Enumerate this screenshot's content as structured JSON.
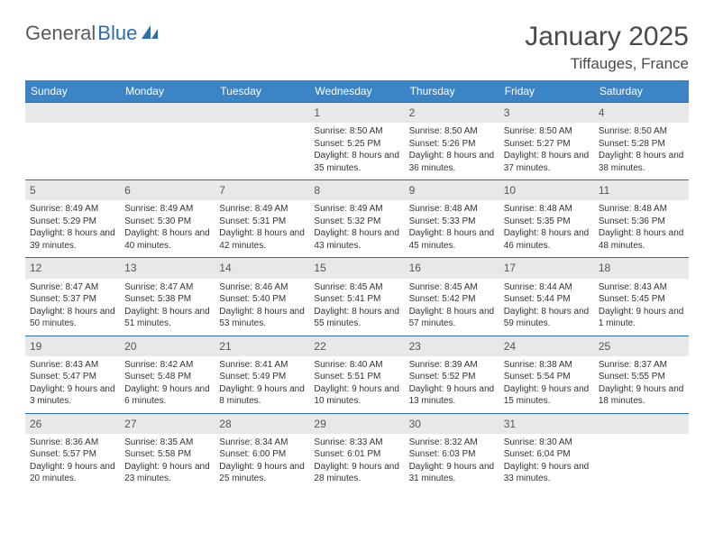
{
  "logo": {
    "text1": "General",
    "text2": "Blue"
  },
  "title": "January 2025",
  "location": "Tiffauges, France",
  "colors": {
    "header_bg": "#3b85c6",
    "header_text": "#ffffff",
    "daynum_bg": "#e8e8e8",
    "border": "#2a6db4",
    "text": "#333333",
    "logo_gray": "#5a5a5a",
    "logo_blue": "#2a6db4"
  },
  "dow": [
    "Sunday",
    "Monday",
    "Tuesday",
    "Wednesday",
    "Thursday",
    "Friday",
    "Saturday"
  ],
  "weeks": [
    [
      null,
      null,
      null,
      {
        "n": "1",
        "sr": "8:50 AM",
        "ss": "5:25 PM",
        "dl": "8 hours and 35 minutes."
      },
      {
        "n": "2",
        "sr": "8:50 AM",
        "ss": "5:26 PM",
        "dl": "8 hours and 36 minutes."
      },
      {
        "n": "3",
        "sr": "8:50 AM",
        "ss": "5:27 PM",
        "dl": "8 hours and 37 minutes."
      },
      {
        "n": "4",
        "sr": "8:50 AM",
        "ss": "5:28 PM",
        "dl": "8 hours and 38 minutes."
      }
    ],
    [
      {
        "n": "5",
        "sr": "8:49 AM",
        "ss": "5:29 PM",
        "dl": "8 hours and 39 minutes."
      },
      {
        "n": "6",
        "sr": "8:49 AM",
        "ss": "5:30 PM",
        "dl": "8 hours and 40 minutes."
      },
      {
        "n": "7",
        "sr": "8:49 AM",
        "ss": "5:31 PM",
        "dl": "8 hours and 42 minutes."
      },
      {
        "n": "8",
        "sr": "8:49 AM",
        "ss": "5:32 PM",
        "dl": "8 hours and 43 minutes."
      },
      {
        "n": "9",
        "sr": "8:48 AM",
        "ss": "5:33 PM",
        "dl": "8 hours and 45 minutes."
      },
      {
        "n": "10",
        "sr": "8:48 AM",
        "ss": "5:35 PM",
        "dl": "8 hours and 46 minutes."
      },
      {
        "n": "11",
        "sr": "8:48 AM",
        "ss": "5:36 PM",
        "dl": "8 hours and 48 minutes."
      }
    ],
    [
      {
        "n": "12",
        "sr": "8:47 AM",
        "ss": "5:37 PM",
        "dl": "8 hours and 50 minutes."
      },
      {
        "n": "13",
        "sr": "8:47 AM",
        "ss": "5:38 PM",
        "dl": "8 hours and 51 minutes."
      },
      {
        "n": "14",
        "sr": "8:46 AM",
        "ss": "5:40 PM",
        "dl": "8 hours and 53 minutes."
      },
      {
        "n": "15",
        "sr": "8:45 AM",
        "ss": "5:41 PM",
        "dl": "8 hours and 55 minutes."
      },
      {
        "n": "16",
        "sr": "8:45 AM",
        "ss": "5:42 PM",
        "dl": "8 hours and 57 minutes."
      },
      {
        "n": "17",
        "sr": "8:44 AM",
        "ss": "5:44 PM",
        "dl": "8 hours and 59 minutes."
      },
      {
        "n": "18",
        "sr": "8:43 AM",
        "ss": "5:45 PM",
        "dl": "9 hours and 1 minute."
      }
    ],
    [
      {
        "n": "19",
        "sr": "8:43 AM",
        "ss": "5:47 PM",
        "dl": "9 hours and 3 minutes."
      },
      {
        "n": "20",
        "sr": "8:42 AM",
        "ss": "5:48 PM",
        "dl": "9 hours and 6 minutes."
      },
      {
        "n": "21",
        "sr": "8:41 AM",
        "ss": "5:49 PM",
        "dl": "9 hours and 8 minutes."
      },
      {
        "n": "22",
        "sr": "8:40 AM",
        "ss": "5:51 PM",
        "dl": "9 hours and 10 minutes."
      },
      {
        "n": "23",
        "sr": "8:39 AM",
        "ss": "5:52 PM",
        "dl": "9 hours and 13 minutes."
      },
      {
        "n": "24",
        "sr": "8:38 AM",
        "ss": "5:54 PM",
        "dl": "9 hours and 15 minutes."
      },
      {
        "n": "25",
        "sr": "8:37 AM",
        "ss": "5:55 PM",
        "dl": "9 hours and 18 minutes."
      }
    ],
    [
      {
        "n": "26",
        "sr": "8:36 AM",
        "ss": "5:57 PM",
        "dl": "9 hours and 20 minutes."
      },
      {
        "n": "27",
        "sr": "8:35 AM",
        "ss": "5:58 PM",
        "dl": "9 hours and 23 minutes."
      },
      {
        "n": "28",
        "sr": "8:34 AM",
        "ss": "6:00 PM",
        "dl": "9 hours and 25 minutes."
      },
      {
        "n": "29",
        "sr": "8:33 AM",
        "ss": "6:01 PM",
        "dl": "9 hours and 28 minutes."
      },
      {
        "n": "30",
        "sr": "8:32 AM",
        "ss": "6:03 PM",
        "dl": "9 hours and 31 minutes."
      },
      {
        "n": "31",
        "sr": "8:30 AM",
        "ss": "6:04 PM",
        "dl": "9 hours and 33 minutes."
      },
      null
    ]
  ],
  "labels": {
    "sunrise": "Sunrise:",
    "sunset": "Sunset:",
    "daylight": "Daylight:"
  }
}
